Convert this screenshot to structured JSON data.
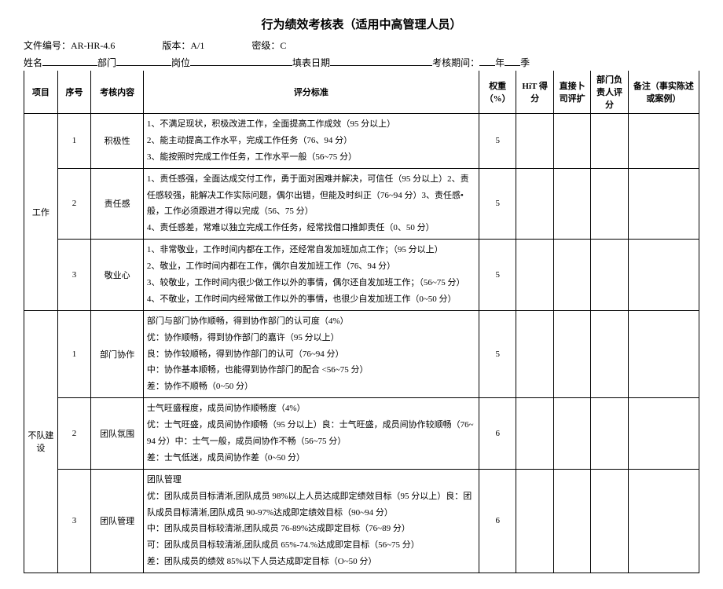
{
  "title": "行为绩效考核表（适用中高管理人员）",
  "meta": {
    "file_no_label": "文件编号：",
    "file_no": "AR-HR-4.6",
    "version_label": "版本：",
    "version": "A/1",
    "secret_label": "密级：",
    "secret": "C"
  },
  "header": {
    "name": "姓名",
    "dept": "部门",
    "post": "岗位",
    "fill_date": "填表日期",
    "period": "考核期间：",
    "year": "年",
    "quarter": "季"
  },
  "cols": {
    "project": "项目",
    "seq": "序号",
    "item": "考核内容",
    "criteria": "评分标准",
    "weight": "权重（%）",
    "hit": "HiT 得分",
    "direct": "直接卜司评扩",
    "dept_score": "部门负责人评分",
    "remark": "备注（事实陈述或案例）"
  },
  "sections": [
    {
      "name": "工作",
      "rows": [
        {
          "seq": "1",
          "item": "积极性",
          "criteria": "1、不满足现状，积极改进工作，全面提高工作成效（95 分以上）\n2、能主动提高工作水平，完成工作任务（76、94 分）\n3、能按照时完成工作任务，工作水平一般（56~75 分）",
          "weight": "5"
        },
        {
          "seq": "2",
          "item": "责任感",
          "criteria": "1、责任感强，全面达成交付工作，勇于面对困难并解决，可信任（95 分以上）2、责任感较强，能解决工作实际问题，偶尔出错，但能及时纠正（76~94 分）3、责任感•般，工作必须跟进才得以完成（56、75 分）\n4、责任感差，常难以独立完成工作任务，经常找借口推卸责任（0、50 分）",
          "weight": "5"
        },
        {
          "seq": "3",
          "item": "敬业心",
          "criteria": "1、非常敬业，工作时间内都在工作，还经常自发加班加点工作；（95 分以上）\n2、敬业，工作时间内都在工作，偶尔自发加班工作（76、94 分）\n3、较敬业，工作时间内很少做工作以外的事情，偶尔还自发加班工作；（56~75 分）\n4、不敬业，工作时间内经常做工作以外的事情，也很少自发加班工作（0~50 分）",
          "weight": "5"
        }
      ]
    },
    {
      "name": "不队建设",
      "rows": [
        {
          "seq": "1",
          "item": "部门协作",
          "criteria": "部门与部门协作顺畅，得到协作部门的认可度（4%）\n优：协作顺畅，得到协作部门的嘉许（95 分以上）\n良：协作较顺畅，得到协作部门的认可（76~94 分）\n中：协作基本顺畅，也能得到协作部门的配合 <56~75 分）\n差：协作不顺畅（0~50 分）",
          "weight": "5"
        },
        {
          "seq": "2",
          "item": "团队氛围",
          "criteria": "士气旺盛程度，成员间协作顺畅度（4%）\n优：士气旺盛，成员间协作顺畅（95 分以上）良：士气旺盛，成员间协作较顺畅（76~94 分）中：士气一般，成员间协作不畅（56~75 分）\n差：士气低迷，成员间协作差（0~50 分）",
          "weight": "6"
        },
        {
          "seq": "3",
          "item": "团队管理",
          "criteria": "团队管理\n优：团队成员目标清淅,团队成员 98%以上人员达成即定绩效目标（95 分以上）良：团队成员目标清淅,团队成员 90-97%达成即定绩效目标（90~94 分）\n中：团队成员目标较清淅,团队成员 76-89%达成即定目标（76~89 分）\n可：团队成员目标较清淅,团队成员 65%-74.%达成即定目标（56~75 分）\n差：团队成员的绩效 85%以下人员达成即定目标（O~50 分）",
          "weight": "6"
        }
      ]
    }
  ]
}
